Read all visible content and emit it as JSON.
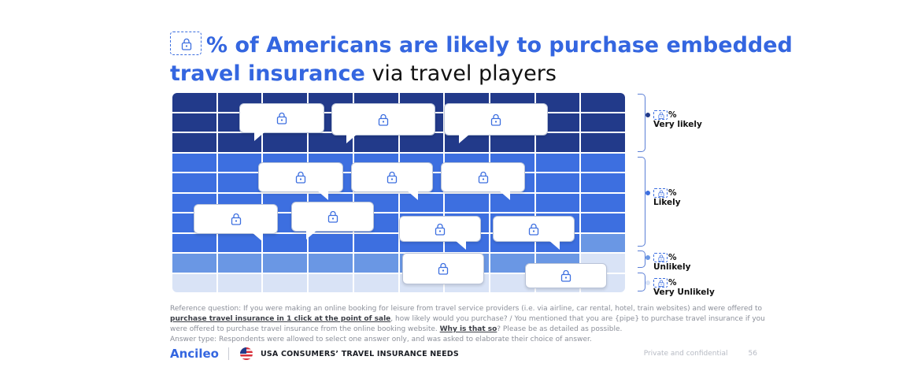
{
  "title": {
    "lead": "% of Americans are likely to purchase embedded",
    "line2_bold": "travel insurance",
    "line2_light": " via travel players"
  },
  "colors": {
    "very_likely": "#223a8a",
    "likely": "#3d6fe0",
    "unlikely": "#6a97e4",
    "very_unlikely": "#d9e3f6",
    "accent": "#3466e0"
  },
  "chart": {
    "rows": [
      "very_likely",
      "very_likely",
      "very_likely",
      "likely",
      "likely",
      "likely",
      "likely",
      "mixed",
      "unlikely",
      "very_unlikely"
    ],
    "mixed_row": [
      "likely",
      "likely",
      "likely",
      "likely",
      "likely",
      "likely",
      "likely",
      "likely",
      "likely",
      "unlikely"
    ],
    "unlikely_row": [
      "unlikely",
      "unlikely",
      "unlikely",
      "unlikely",
      "unlikely",
      "unlikely",
      "unlikely",
      "unlikely",
      "unlikely",
      "very_unlikely"
    ],
    "bubbles": [
      {
        "id": "b1"
      },
      {
        "id": "b2"
      },
      {
        "id": "b3"
      },
      {
        "id": "b4"
      },
      {
        "id": "b5"
      },
      {
        "id": "b6"
      },
      {
        "id": "b7"
      },
      {
        "id": "b8"
      },
      {
        "id": "b9"
      },
      {
        "id": "b10"
      },
      {
        "id": "b11"
      },
      {
        "id": "b12"
      }
    ]
  },
  "legend": [
    {
      "key": "very_likely",
      "pct": "%",
      "label": "Very likely"
    },
    {
      "key": "likely",
      "pct": "%",
      "label": "Likely"
    },
    {
      "key": "unlikely",
      "pct": "%",
      "label": "Unlikely"
    },
    {
      "key": "very_unlikely",
      "pct": "%",
      "label": "Very Unlikely"
    }
  ],
  "footnote": {
    "ref_a": "Reference question: If you were making an online booking for leisure from travel service providers (i.e. via airline, car rental, hotel, train websites) and were offered to ",
    "ref_b": "purchase travel insurance in 1 click at the point of sale",
    "ref_c": ", how likely would you purchase? / You mentioned that you are {pipe} to purchase travel insurance if you were offered to purchase travel insurance from the online booking website. ",
    "ref_d": "Why is that so",
    "ref_e": "? Please be as detailed as possible.",
    "answer": "Answer type: Respondents were allowed to select one answer only, and was asked to elaborate their choice of answer."
  },
  "footer": {
    "brand": "Ancileo",
    "report": "USA CONSUMERS’ TRAVEL INSURANCE NEEDS",
    "private": "Private and confidential",
    "page": "56"
  }
}
